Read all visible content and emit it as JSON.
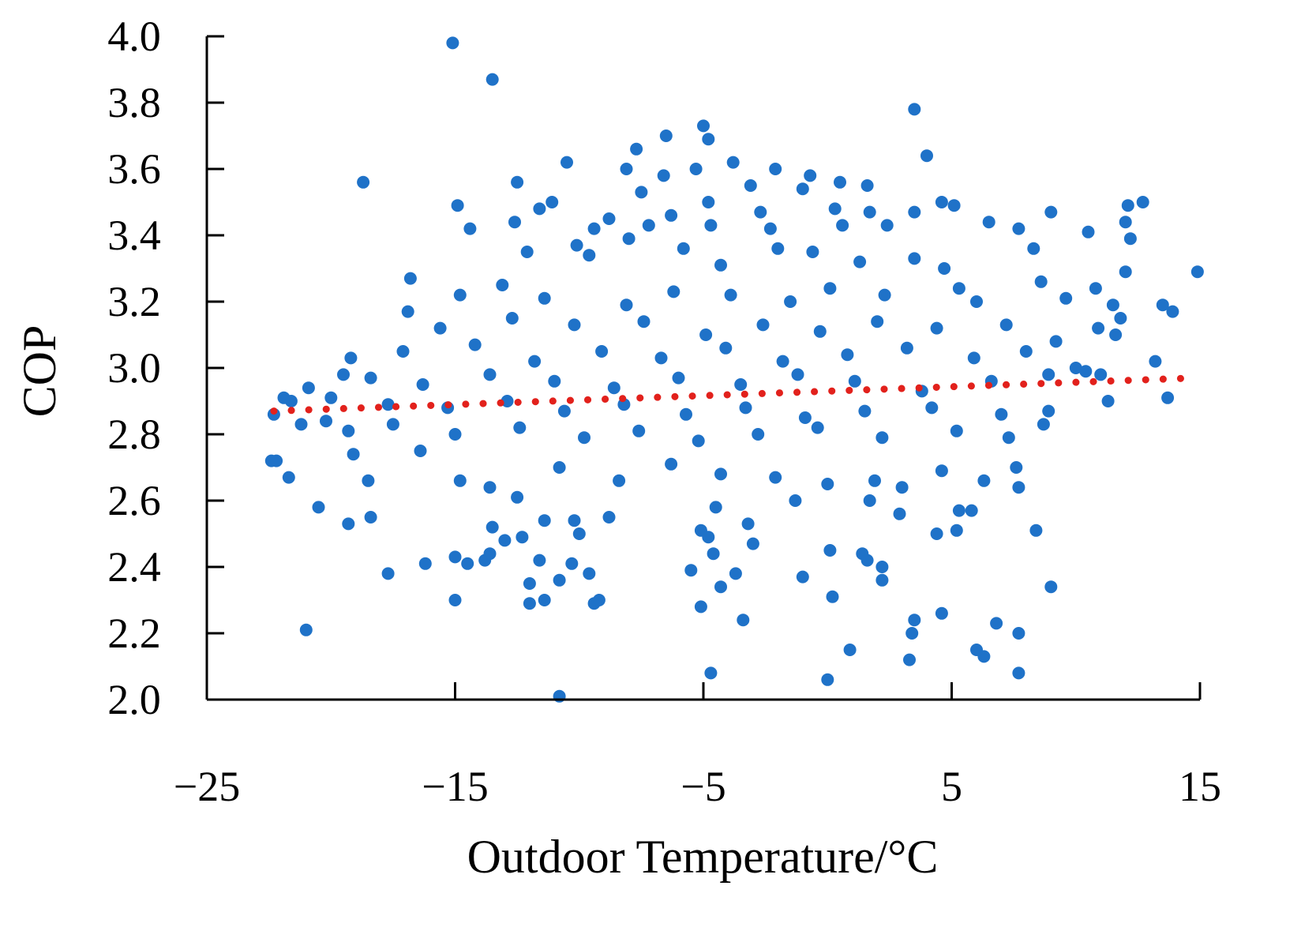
{
  "chart_data": {
    "type": "scatter",
    "title": "",
    "xlabel": "Outdoor Temperature/°C",
    "ylabel": "COP",
    "xlim": [
      -25,
      15
    ],
    "ylim": [
      2.0,
      4.0
    ],
    "xticks": [
      -25,
      -15,
      -5,
      5,
      15
    ],
    "xtick_labels": [
      "−25",
      "−15",
      "−5",
      "5",
      "15"
    ],
    "yticks": [
      2.0,
      2.2,
      2.4,
      2.6,
      2.8,
      3.0,
      3.2,
      3.4,
      3.6,
      3.8,
      4.0
    ],
    "ytick_labels": [
      "2.0",
      "2.2",
      "2.4",
      "2.6",
      "2.8",
      "3.0",
      "3.2",
      "3.4",
      "3.6",
      "3.8",
      "4.0"
    ],
    "grid": false,
    "legend": "none",
    "series": [
      {
        "marker_color": "#1f72c8",
        "points": [
          [
            -15.1,
            3.98
          ],
          [
            -13.5,
            3.87
          ],
          [
            3.5,
            3.78
          ],
          [
            -5.0,
            3.73
          ],
          [
            -6.5,
            3.7
          ],
          [
            -4.8,
            3.69
          ],
          [
            -7.7,
            3.66
          ],
          [
            4.0,
            3.64
          ],
          [
            -10.5,
            3.62
          ],
          [
            -3.8,
            3.62
          ],
          [
            -2.1,
            3.6
          ],
          [
            -5.3,
            3.6
          ],
          [
            -8.1,
            3.6
          ],
          [
            -6.6,
            3.58
          ],
          [
            -12.5,
            3.56
          ],
          [
            -18.7,
            3.56
          ],
          [
            -0.7,
            3.58
          ],
          [
            0.5,
            3.56
          ],
          [
            1.6,
            3.55
          ],
          [
            -7.5,
            3.53
          ],
          [
            -3.1,
            3.55
          ],
          [
            -1.0,
            3.54
          ],
          [
            -14.9,
            3.49
          ],
          [
            -11.6,
            3.48
          ],
          [
            -11.1,
            3.5
          ],
          [
            -4.8,
            3.5
          ],
          [
            -2.7,
            3.47
          ],
          [
            0.3,
            3.48
          ],
          [
            1.7,
            3.47
          ],
          [
            3.5,
            3.47
          ],
          [
            5.1,
            3.49
          ],
          [
            4.6,
            3.5
          ],
          [
            9.0,
            3.47
          ],
          [
            12.1,
            3.49
          ],
          [
            12.7,
            3.5
          ],
          [
            -14.4,
            3.42
          ],
          [
            -12.6,
            3.44
          ],
          [
            -9.4,
            3.42
          ],
          [
            -8.8,
            3.45
          ],
          [
            -7.2,
            3.43
          ],
          [
            -6.3,
            3.46
          ],
          [
            -4.7,
            3.43
          ],
          [
            -2.3,
            3.42
          ],
          [
            0.6,
            3.43
          ],
          [
            2.4,
            3.43
          ],
          [
            6.5,
            3.44
          ],
          [
            7.7,
            3.42
          ],
          [
            10.5,
            3.41
          ],
          [
            12.0,
            3.44
          ],
          [
            12.2,
            3.39
          ],
          [
            -16.8,
            3.27
          ],
          [
            -16.9,
            3.17
          ],
          [
            -12.1,
            3.35
          ],
          [
            -10.1,
            3.37
          ],
          [
            -9.6,
            3.34
          ],
          [
            -8.0,
            3.39
          ],
          [
            -5.8,
            3.36
          ],
          [
            -4.3,
            3.31
          ],
          [
            -2.0,
            3.36
          ],
          [
            -0.6,
            3.35
          ],
          [
            1.3,
            3.32
          ],
          [
            3.5,
            3.33
          ],
          [
            4.7,
            3.3
          ],
          [
            8.3,
            3.36
          ],
          [
            14.9,
            3.29
          ],
          [
            12.0,
            3.29
          ],
          [
            -14.8,
            3.22
          ],
          [
            -13.1,
            3.25
          ],
          [
            -11.4,
            3.21
          ],
          [
            -8.1,
            3.19
          ],
          [
            -6.2,
            3.23
          ],
          [
            -3.9,
            3.22
          ],
          [
            -1.5,
            3.2
          ],
          [
            0.1,
            3.24
          ],
          [
            2.3,
            3.22
          ],
          [
            5.3,
            3.24
          ],
          [
            6.0,
            3.2
          ],
          [
            8.6,
            3.26
          ],
          [
            9.6,
            3.21
          ],
          [
            10.8,
            3.24
          ],
          [
            11.5,
            3.19
          ],
          [
            13.5,
            3.19
          ],
          [
            13.9,
            3.17
          ],
          [
            -15.6,
            3.12
          ],
          [
            -12.7,
            3.15
          ],
          [
            -10.2,
            3.13
          ],
          [
            -7.4,
            3.14
          ],
          [
            -4.9,
            3.1
          ],
          [
            -2.6,
            3.13
          ],
          [
            -0.3,
            3.11
          ],
          [
            2.0,
            3.14
          ],
          [
            4.4,
            3.12
          ],
          [
            7.2,
            3.13
          ],
          [
            9.2,
            3.08
          ],
          [
            10.9,
            3.12
          ],
          [
            11.6,
            3.1
          ],
          [
            11.8,
            3.15
          ],
          [
            -17.1,
            3.05
          ],
          [
            -14.2,
            3.07
          ],
          [
            -11.8,
            3.02
          ],
          [
            -9.1,
            3.05
          ],
          [
            -6.7,
            3.03
          ],
          [
            -4.1,
            3.06
          ],
          [
            -1.8,
            3.02
          ],
          [
            0.8,
            3.04
          ],
          [
            3.2,
            3.06
          ],
          [
            5.9,
            3.03
          ],
          [
            8.0,
            3.05
          ],
          [
            10.0,
            3.0
          ],
          [
            10.4,
            2.99
          ],
          [
            -19.2,
            3.03
          ],
          [
            -19.5,
            2.98
          ],
          [
            -18.4,
            2.97
          ],
          [
            -16.3,
            2.95
          ],
          [
            -13.6,
            2.98
          ],
          [
            -11.0,
            2.96
          ],
          [
            -8.6,
            2.94
          ],
          [
            -6.0,
            2.97
          ],
          [
            -3.5,
            2.95
          ],
          [
            -1.2,
            2.98
          ],
          [
            1.1,
            2.96
          ],
          [
            3.8,
            2.93
          ],
          [
            6.6,
            2.96
          ],
          [
            8.9,
            2.98
          ],
          [
            11.0,
            2.98
          ],
          [
            13.2,
            3.02
          ],
          [
            -20.9,
            2.94
          ],
          [
            -21.9,
            2.91
          ],
          [
            -21.6,
            2.9
          ],
          [
            -20.0,
            2.91
          ],
          [
            -17.7,
            2.89
          ],
          [
            -15.3,
            2.88
          ],
          [
            -12.9,
            2.9
          ],
          [
            -10.6,
            2.87
          ],
          [
            -8.2,
            2.89
          ],
          [
            -5.7,
            2.86
          ],
          [
            -3.3,
            2.88
          ],
          [
            -0.9,
            2.85
          ],
          [
            1.5,
            2.87
          ],
          [
            4.2,
            2.88
          ],
          [
            7.0,
            2.86
          ],
          [
            8.9,
            2.87
          ],
          [
            11.3,
            2.9
          ],
          [
            13.7,
            2.91
          ],
          [
            -22.3,
            2.86
          ],
          [
            -21.2,
            2.83
          ],
          [
            -20.2,
            2.84
          ],
          [
            -19.3,
            2.81
          ],
          [
            -17.5,
            2.83
          ],
          [
            -15.0,
            2.8
          ],
          [
            -12.4,
            2.82
          ],
          [
            -9.8,
            2.79
          ],
          [
            -7.6,
            2.81
          ],
          [
            -5.2,
            2.78
          ],
          [
            -2.8,
            2.8
          ],
          [
            -0.4,
            2.82
          ],
          [
            2.2,
            2.79
          ],
          [
            5.2,
            2.81
          ],
          [
            7.3,
            2.79
          ],
          [
            8.7,
            2.83
          ],
          [
            -22.4,
            2.72
          ],
          [
            -22.2,
            2.72
          ],
          [
            -21.7,
            2.67
          ],
          [
            -19.1,
            2.74
          ],
          [
            -18.5,
            2.66
          ],
          [
            -16.4,
            2.75
          ],
          [
            -14.8,
            2.66
          ],
          [
            -13.6,
            2.64
          ],
          [
            -12.5,
            2.61
          ],
          [
            -10.8,
            2.7
          ],
          [
            -8.4,
            2.66
          ],
          [
            -6.3,
            2.71
          ],
          [
            -4.3,
            2.68
          ],
          [
            -2.1,
            2.67
          ],
          [
            0.0,
            2.65
          ],
          [
            1.9,
            2.66
          ],
          [
            3.0,
            2.64
          ],
          [
            4.6,
            2.69
          ],
          [
            6.3,
            2.66
          ],
          [
            7.6,
            2.7
          ],
          [
            7.7,
            2.64
          ],
          [
            -20.5,
            2.58
          ],
          [
            -19.3,
            2.53
          ],
          [
            -18.4,
            2.55
          ],
          [
            -11.4,
            2.54
          ],
          [
            -10.2,
            2.54
          ],
          [
            -8.8,
            2.55
          ],
          [
            -4.5,
            2.58
          ],
          [
            -1.3,
            2.6
          ],
          [
            1.7,
            2.6
          ],
          [
            2.9,
            2.56
          ],
          [
            5.3,
            2.57
          ],
          [
            5.8,
            2.57
          ],
          [
            8.4,
            2.51
          ],
          [
            -13.5,
            2.52
          ],
          [
            -13.0,
            2.48
          ],
          [
            -12.3,
            2.49
          ],
          [
            -10.0,
            2.5
          ],
          [
            -5.1,
            2.51
          ],
          [
            -4.8,
            2.49
          ],
          [
            -3.2,
            2.53
          ],
          [
            4.4,
            2.5
          ],
          [
            5.2,
            2.51
          ],
          [
            -14.5,
            2.41
          ],
          [
            -15.0,
            2.43
          ],
          [
            -13.8,
            2.42
          ],
          [
            -13.6,
            2.44
          ],
          [
            -16.2,
            2.41
          ],
          [
            -17.7,
            2.38
          ],
          [
            -11.6,
            2.42
          ],
          [
            -10.3,
            2.41
          ],
          [
            -9.6,
            2.38
          ],
          [
            -5.5,
            2.39
          ],
          [
            -4.6,
            2.44
          ],
          [
            -3.0,
            2.47
          ],
          [
            -1.0,
            2.37
          ],
          [
            0.1,
            2.45
          ],
          [
            1.4,
            2.44
          ],
          [
            1.6,
            2.42
          ],
          [
            2.2,
            2.4
          ],
          [
            -12.0,
            2.35
          ],
          [
            -12.0,
            2.29
          ],
          [
            -11.4,
            2.3
          ],
          [
            -10.8,
            2.36
          ],
          [
            -9.4,
            2.29
          ],
          [
            -9.2,
            2.3
          ],
          [
            -4.3,
            2.34
          ],
          [
            -3.7,
            2.38
          ],
          [
            0.2,
            2.31
          ],
          [
            2.2,
            2.36
          ],
          [
            9.0,
            2.34
          ],
          [
            -15.0,
            2.3
          ],
          [
            -21.0,
            2.21
          ],
          [
            -5.1,
            2.28
          ],
          [
            -3.4,
            2.24
          ],
          [
            3.5,
            2.24
          ],
          [
            3.4,
            2.2
          ],
          [
            4.6,
            2.26
          ],
          [
            6.8,
            2.23
          ],
          [
            7.7,
            2.2
          ],
          [
            0.9,
            2.15
          ],
          [
            3.3,
            2.12
          ],
          [
            6.0,
            2.15
          ],
          [
            6.3,
            2.13
          ],
          [
            -4.7,
            2.08
          ],
          [
            0.0,
            2.06
          ],
          [
            7.7,
            2.08
          ],
          [
            -10.8,
            2.01
          ]
        ]
      }
    ],
    "trendline": {
      "style": "dotted",
      "color": "#e2211c",
      "x": [
        -22.3,
        14.9
      ],
      "y": [
        2.87,
        2.97
      ]
    }
  }
}
